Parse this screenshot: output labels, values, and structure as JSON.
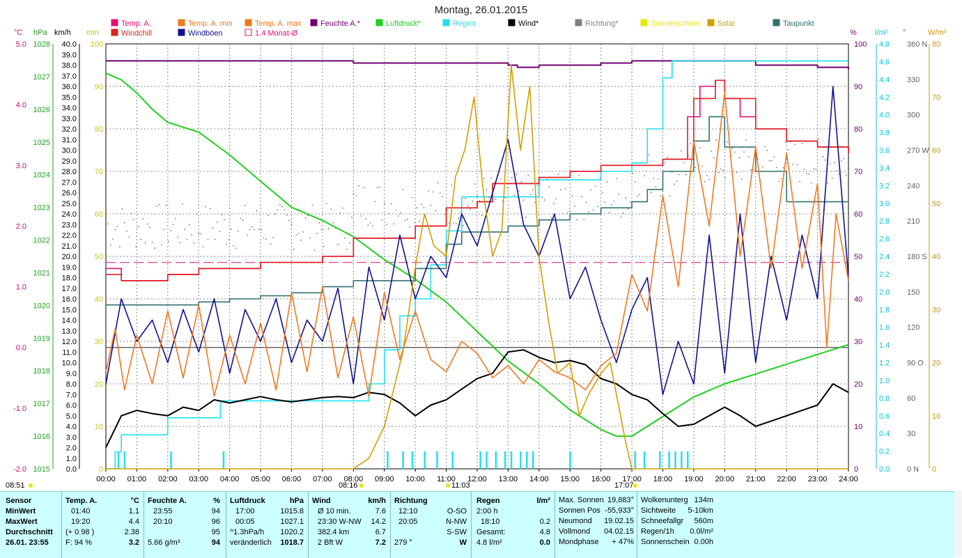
{
  "title": "Montag, 26.01.2015",
  "legend": [
    {
      "label": "Temp. A.",
      "color": "#e0106e"
    },
    {
      "label": "Windchill",
      "color": "#e02020"
    },
    {
      "label": "Temp. A. min",
      "color": "#f07820"
    },
    {
      "label": "Windböen",
      "color": "#101090"
    },
    {
      "label": "Temp. A. max",
      "color": "#f07820"
    },
    {
      "label": "1.4 Monat-Ø",
      "color": "#e0106e"
    },
    {
      "label": "Feuchte A.*",
      "color": "#700070"
    },
    {
      "label": "Luftdruck*",
      "color": "#20d020"
    },
    {
      "label": "Regen",
      "color": "#20e0f0"
    },
    {
      "label": "Wind*",
      "color": "#000000"
    },
    {
      "label": "Richtung*",
      "color": "#808080"
    },
    {
      "label": "Sonnenschein",
      "color": "#e8e800"
    },
    {
      "label": "Solar",
      "color": "#d0a000"
    },
    {
      "label": "Taupunkt",
      "color": "#307070"
    }
  ],
  "axis_headers": {
    "celsius": "°C",
    "hpa": "hPa",
    "kmh": "km/h",
    "min": "min",
    "percent": "%",
    "lm2": "l/m²",
    "deg": "°",
    "wm2": "W/m²"
  },
  "chart_data": {
    "type": "line",
    "x_ticks": [
      "00:00",
      "01:00",
      "02:00",
      "03:00",
      "04:00",
      "05:00",
      "06:00",
      "07:00",
      "08:00",
      "09:00",
      "10:00",
      "11:00",
      "12:00",
      "13:00",
      "14:00",
      "15:00",
      "16:00",
      "17:00",
      "18:00",
      "19:00",
      "20:00",
      "21:00",
      "22:00",
      "23:00",
      "24:00"
    ],
    "y_axes": {
      "celsius": {
        "ticks": [
          "5.0",
          "4.0",
          "3.0",
          "2.0",
          "1.0",
          "0.0",
          "-1.0",
          "-2.0"
        ],
        "range": [
          -2,
          5
        ],
        "color": "#c0107a"
      },
      "hpa": {
        "ticks": [
          "1028",
          "1027",
          "1026",
          "1025",
          "1024",
          "1023",
          "1022",
          "1021",
          "1020",
          "1019",
          "1018",
          "1017",
          "1016",
          "1015"
        ],
        "range": [
          1015,
          1028
        ],
        "color": "#20a020"
      },
      "kmh": {
        "ticks": [
          "40.0",
          "39.0",
          "38.0",
          "37.0",
          "36.0",
          "35.0",
          "34.0",
          "33.0",
          "32.0",
          "31.0",
          "30.0",
          "29.0",
          "28.0",
          "27.0",
          "26.0",
          "25.0",
          "24.0",
          "23.0",
          "22.0",
          "21.0",
          "20.0",
          "19.0",
          "18.0",
          "17.0",
          "16.0",
          "15.0",
          "14.0",
          "13.0",
          "12.0",
          "11.0",
          "10.0",
          "9.0",
          "8.0",
          "7.0",
          "6.0",
          "5.0",
          "4.0",
          "3.0",
          "2.0",
          "1.0",
          "0.0"
        ],
        "range": [
          0,
          40
        ],
        "color": "#000000"
      },
      "min": {
        "ticks": [
          "100",
          "90",
          "80",
          "70",
          "60",
          "50",
          "40",
          "30",
          "20",
          "10",
          "0"
        ],
        "range": [
          0,
          100
        ],
        "color": "#c8c800"
      },
      "percent": {
        "ticks": [
          "100",
          "90",
          "80",
          "70",
          "60",
          "50",
          "40",
          "30",
          "20",
          "10",
          "0"
        ],
        "range": [
          0,
          100
        ],
        "color": "#700070"
      },
      "lm2": {
        "ticks": [
          "4.8",
          "4.6",
          "4.4",
          "4.2",
          "4.0",
          "3.8",
          "3.6",
          "3.4",
          "3.2",
          "3.0",
          "2.8",
          "2.6",
          "2.4",
          "2.2",
          "2.0",
          "1.8",
          "1.6",
          "1.4",
          "1.2",
          "1.0",
          "0.8",
          "0.6",
          "0.4",
          "0.2",
          "0.0"
        ],
        "range": [
          0,
          5
        ],
        "color": "#10c0d0"
      },
      "deg": {
        "ticks": [
          "360 N",
          "330",
          "300",
          "270 W",
          "240",
          "210",
          "180 S",
          "150",
          "120",
          "90 O",
          "60",
          "30",
          "0 N"
        ],
        "range": [
          0,
          360
        ],
        "color": "#606060"
      },
      "wm2": {
        "ticks": [
          "80",
          "70",
          "60",
          "50",
          "40",
          "30",
          "20",
          "10",
          "0"
        ],
        "range": [
          0,
          80
        ],
        "color": "#c89600"
      }
    },
    "series": [
      {
        "name": "Temp. A.",
        "axis": "celsius",
        "color": "#e0106e",
        "x": [
          0,
          0.5,
          1,
          2,
          3,
          4,
          5,
          6,
          7,
          8,
          9,
          10,
          11,
          12,
          12.5,
          13,
          14,
          15,
          16,
          16.5,
          17,
          18,
          18.8,
          19.2,
          19.7,
          20,
          20.5,
          21,
          22,
          23,
          23.5,
          24
        ],
        "y": [
          1.3,
          1.1,
          1.1,
          1.2,
          1.3,
          1.3,
          1.4,
          1.4,
          1.5,
          1.8,
          1.8,
          2.0,
          2.3,
          2.4,
          2.7,
          2.7,
          2.8,
          2.9,
          3.0,
          3.0,
          3.0,
          3.1,
          3.8,
          4.3,
          4.4,
          4.1,
          3.8,
          3.6,
          3.4,
          3.3,
          3.3,
          3.2
        ]
      },
      {
        "name": "Feuchte A.*",
        "axis": "percent",
        "color": "#700070",
        "x": [
          0,
          3,
          7,
          8,
          12,
          13,
          13.3,
          14,
          16,
          17,
          20,
          21,
          22,
          23,
          24
        ],
        "y": [
          96,
          96,
          96,
          95.5,
          95.5,
          95,
          94.5,
          95,
          95.5,
          96,
          96,
          95,
          95,
          94.5,
          94
        ]
      },
      {
        "name": "Luftdruck*",
        "axis": "hpa",
        "color": "#20d020",
        "x": [
          0,
          0.5,
          1,
          1.5,
          2,
          3,
          4,
          5,
          6,
          7,
          8,
          9,
          10,
          11,
          12,
          13,
          14,
          15,
          16,
          16.5,
          17,
          18,
          19,
          20,
          21,
          22,
          23,
          24
        ],
        "y": [
          1027.1,
          1026.9,
          1026.5,
          1026.0,
          1025.6,
          1025.3,
          1024.6,
          1023.8,
          1023.0,
          1022.6,
          1022.1,
          1021.4,
          1020.8,
          1020.1,
          1019.2,
          1018.3,
          1017.6,
          1016.8,
          1016.2,
          1016.0,
          1016.0,
          1016.6,
          1017.2,
          1017.6,
          1017.9,
          1018.2,
          1018.5,
          1018.8
        ]
      },
      {
        "name": "Regen",
        "axis": "lm2",
        "color": "#20e0f0",
        "x": [
          0,
          0.3,
          0.5,
          1,
          2,
          3,
          3.7,
          4,
          8,
          8.5,
          9,
          9.5,
          10,
          10.5,
          11,
          11.5,
          12,
          13,
          14,
          15,
          16,
          17,
          17.5,
          18,
          18.3,
          19,
          20,
          22,
          24
        ],
        "y": [
          0,
          0.2,
          0.4,
          0.4,
          0.6,
          0.6,
          0.8,
          0.8,
          0.8,
          1.0,
          1.4,
          1.8,
          2.0,
          2.4,
          2.8,
          3.2,
          3.2,
          3.2,
          3.4,
          3.4,
          3.5,
          3.6,
          4.0,
          4.6,
          4.8,
          4.8,
          4.8,
          4.8,
          4.8
        ]
      },
      {
        "name": "Wind*",
        "axis": "kmh",
        "color": "#000000",
        "x": [
          0,
          0.5,
          1,
          1.5,
          2,
          2.5,
          3,
          3.5,
          4,
          4.5,
          5,
          5.5,
          6,
          6.5,
          7,
          7.5,
          8,
          8.5,
          9,
          9.5,
          10,
          10.5,
          11,
          11.5,
          12,
          12.5,
          13,
          13.5,
          14,
          14.5,
          15,
          15.5,
          16,
          16.5,
          17,
          17.5,
          18,
          18.5,
          19,
          19.5,
          20,
          20.5,
          21,
          21.5,
          22,
          22.5,
          23,
          23.5,
          24
        ],
        "y": [
          2.0,
          5.0,
          5.5,
          5.2,
          5.0,
          5.8,
          5.5,
          6.5,
          6.2,
          6.5,
          6.8,
          6.5,
          6.3,
          6.5,
          6.7,
          6.8,
          6.7,
          7.2,
          7.0,
          6.2,
          5.0,
          6.0,
          6.5,
          7.5,
          8.5,
          9.0,
          11.0,
          11.2,
          10.5,
          10.0,
          10.2,
          9.8,
          8.5,
          8.0,
          7.0,
          6.5,
          5.2,
          4.0,
          4.2,
          5.0,
          5.8,
          5.0,
          4.0,
          4.5,
          5.0,
          5.5,
          6.0,
          8.0,
          7.2
        ]
      },
      {
        "name": "Windchill",
        "axis": "celsius",
        "color": "#e02020",
        "x": [
          0,
          0.5,
          1,
          2,
          3,
          4,
          5,
          6,
          7,
          8,
          9,
          10,
          11,
          12,
          12.5,
          13,
          14,
          15,
          16,
          17,
          18,
          19,
          19.7,
          20,
          21,
          22,
          23,
          24
        ],
        "y": [
          1.2,
          1.1,
          1.1,
          1.2,
          1.3,
          1.3,
          1.4,
          1.4,
          1.5,
          1.8,
          1.8,
          2.0,
          2.3,
          2.4,
          2.7,
          2.7,
          2.8,
          2.9,
          3.0,
          3.0,
          3.1,
          4.1,
          4.4,
          4.1,
          3.6,
          3.4,
          3.3,
          3.2
        ]
      },
      {
        "name": "Taupunkt",
        "axis": "celsius",
        "color": "#307070",
        "x": [
          0,
          1,
          2,
          3,
          4,
          5,
          6,
          7,
          8,
          9,
          10,
          11,
          11.5,
          12,
          13,
          14,
          15,
          16,
          17,
          17.5,
          18,
          19,
          19.5,
          20,
          21,
          22,
          23,
          24
        ],
        "y": [
          0.7,
          0.7,
          0.7,
          0.75,
          0.8,
          0.85,
          0.9,
          1.0,
          1.1,
          1.1,
          1.3,
          1.7,
          1.9,
          1.9,
          2.0,
          2.1,
          2.2,
          2.3,
          2.4,
          2.6,
          2.9,
          3.4,
          3.8,
          3.3,
          2.9,
          2.4,
          2.4,
          2.4
        ]
      },
      {
        "name": "Windböen",
        "axis": "kmh",
        "color": "#101090",
        "x": [
          0,
          0.5,
          1,
          1.5,
          2,
          2.5,
          3,
          3.5,
          4,
          4.5,
          5,
          5.5,
          6,
          6.5,
          7,
          7.5,
          8,
          8.5,
          9,
          9.5,
          10,
          10.5,
          11,
          11.5,
          12,
          12.5,
          13,
          13.5,
          14,
          14.5,
          15,
          15.5,
          16,
          16.5,
          17,
          17.5,
          18,
          18.5,
          19,
          19.5,
          20,
          20.5,
          21,
          21.5,
          22,
          22.5,
          23,
          23.5,
          24
        ],
        "y": [
          8,
          16,
          12,
          14,
          10,
          15,
          11,
          16,
          9,
          15,
          12,
          16,
          10,
          14,
          12,
          17,
          8,
          19,
          14,
          22,
          16,
          20,
          18,
          24,
          21,
          26,
          31,
          23,
          20,
          24,
          16,
          19,
          14,
          10,
          15,
          18,
          7,
          12,
          8,
          22,
          9,
          24,
          10,
          20,
          14,
          22,
          16,
          36,
          18
        ]
      },
      {
        "name": "Temp. A. min",
        "axis": "celsius",
        "color": "#f07820",
        "x": [
          0,
          0.3,
          0.6,
          1,
          1.5,
          2,
          2.5,
          3,
          3.5,
          4,
          4.5,
          5,
          5.5,
          6,
          6.5,
          7,
          7.5,
          8,
          8.5,
          9,
          9.5,
          10,
          10.5,
          11,
          11.5,
          12,
          12.5,
          13,
          13.5,
          14,
          14.5,
          15,
          15.5,
          16,
          16.5,
          17,
          17.5,
          18,
          18.5,
          19,
          19.5,
          20,
          20.5,
          21,
          21.5,
          22,
          22.5,
          23,
          23.3,
          23.6,
          24
        ],
        "y": [
          -0.4,
          0.3,
          -0.7,
          0.2,
          -0.6,
          0.6,
          -0.5,
          0.7,
          -0.8,
          0.2,
          -0.6,
          0.4,
          -0.7,
          0.9,
          -0.4,
          1.0,
          -0.5,
          0.5,
          -0.8,
          0.9,
          -0.2,
          0.6,
          -0.2,
          -0.4,
          0.1,
          -0.1,
          -0.5,
          -0.3,
          -0.6,
          -0.2,
          -0.4,
          -0.5,
          -0.7,
          -0.3,
          -0.1,
          1.2,
          0.6,
          2.5,
          1.0,
          3.4,
          2.0,
          4.2,
          1.5,
          3.3,
          1.3,
          3.2,
          1.3,
          2.7,
          0.0,
          2.2,
          1.1
        ]
      },
      {
        "name": "Solar",
        "axis": "wm2",
        "color": "#d0a000",
        "x": [
          0,
          8,
          8.5,
          9,
          9.3,
          9.6,
          10,
          10.3,
          10.6,
          11,
          11.3,
          11.6,
          11.9,
          12.2,
          12.5,
          12.8,
          13.1,
          13.4,
          13.7,
          14,
          14.3,
          14.6,
          15,
          15.3,
          15.6,
          16,
          16.3,
          16.5,
          16.8,
          17,
          18,
          24
        ],
        "y": [
          0,
          0,
          2,
          8,
          15,
          22,
          38,
          48,
          42,
          40,
          55,
          60,
          70,
          52,
          40,
          45,
          76,
          60,
          72,
          40,
          28,
          18,
          20,
          10,
          14,
          18,
          20,
          14,
          5,
          0,
          0,
          0
        ]
      }
    ]
  },
  "events": {
    "sunrise": "08:16",
    "noon": "11:03",
    "sunset": "17:07",
    "left": "08:51"
  },
  "stats": {
    "sensor": {
      "h": "Sensor",
      "rows": [
        "MinWert",
        "MaxWert",
        "Durchschnitt",
        "26.01. 23:55"
      ]
    },
    "temp": {
      "h": "Temp. A.",
      "unit": "°C",
      "rows": [
        [
          "01:40",
          "1.1"
        ],
        [
          "19:20",
          "4.4"
        ],
        [
          "(+ 0.98 )",
          "2.38"
        ],
        [
          "F: 94 %",
          "3.2"
        ]
      ]
    },
    "feuchte": {
      "h": "Feuchte A.",
      "unit": "%",
      "rows": [
        [
          "23:55",
          "94"
        ],
        [
          "20:10",
          "96"
        ],
        [
          "",
          "95"
        ],
        [
          "5.66 g/m³",
          "94"
        ]
      ]
    },
    "luftdruck": {
      "h": "Luftdruck",
      "unit": "hPa",
      "rows": [
        [
          "17:00",
          "1015.8"
        ],
        [
          "00:05",
          "1027.1"
        ],
        [
          "^1.3hPa/h",
          "1020.2"
        ],
        [
          "veränderlich",
          "1018.7"
        ]
      ]
    },
    "wind": {
      "h": "Wind",
      "unit": "km/h",
      "rows": [
        [
          "Ø 10 min.",
          "7.6"
        ],
        [
          "23:30  W-NW",
          "14.2"
        ],
        [
          "382.4 km",
          "6.7"
        ],
        [
          "2 Bft W",
          "7.2"
        ]
      ]
    },
    "richtung": {
      "h": "Richtung",
      "rows": [
        [
          "12:10",
          "O-SO"
        ],
        [
          "20:05",
          "N-NW"
        ],
        [
          "",
          "S-SW"
        ],
        [
          "279 °",
          "W"
        ]
      ]
    },
    "regen": {
      "h": "Regen",
      "unit": "l/m²",
      "rows": [
        [
          "2:00 h",
          ""
        ],
        [
          "18:10",
          "0.2"
        ],
        [
          "Gesamt:",
          "4.8"
        ],
        [
          "4.8 l/m²",
          "0.0"
        ]
      ]
    },
    "sonne": {
      "rows": [
        [
          "Max. Sonnen",
          "19,883°"
        ],
        [
          "Sonnen Pos",
          "-55,933°"
        ],
        [
          "Neumond",
          "19.02.15"
        ],
        [
          "Vollmond",
          "04.02.15"
        ],
        [
          "Mondphase",
          "+ 47%"
        ]
      ]
    },
    "wolken": {
      "rows": [
        [
          "Wolkenunterg",
          "134m"
        ],
        [
          "Sichtweite",
          "5-10km"
        ],
        [
          "Schneefallgr",
          "560m"
        ],
        [
          "Regen/1h",
          "0.0l/m²"
        ],
        [
          "Sonnenschein",
          "0.00h"
        ]
      ]
    }
  }
}
